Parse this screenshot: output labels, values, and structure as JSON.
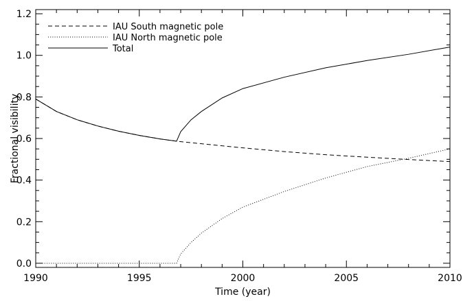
{
  "chart_data": {
    "type": "line",
    "xlabel": "Time (year)",
    "ylabel": "Fractional visibility",
    "xlim": [
      1990,
      2010
    ],
    "ylim": [
      -0.02,
      1.22
    ],
    "x_ticks": [
      1990,
      1995,
      2000,
      2005,
      2010
    ],
    "y_ticks": [
      0.0,
      0.2,
      0.4,
      0.6,
      0.8,
      1.0,
      1.2
    ],
    "x_tick_labels": [
      "1990",
      "1995",
      "2000",
      "2005",
      "2010"
    ],
    "y_tick_labels": [
      "0.0",
      "0.2",
      "0.4",
      "0.6",
      "0.8",
      "1.0",
      "1.2"
    ],
    "legend_position": "top-left",
    "grid": false,
    "series": [
      {
        "name": "IAU South magnetic pole",
        "style": "dashed",
        "color": "#000000",
        "x": [
          1990,
          1991,
          1992,
          1993,
          1994,
          1995,
          1996,
          1996.8,
          1998,
          2000,
          2002,
          2004,
          2006,
          2008,
          2010
        ],
        "y": [
          0.79,
          0.73,
          0.69,
          0.66,
          0.635,
          0.615,
          0.598,
          0.587,
          0.575,
          0.555,
          0.537,
          0.522,
          0.51,
          0.499,
          0.489
        ]
      },
      {
        "name": "IAU North magnetic pole",
        "style": "dotted",
        "color": "#000000",
        "x": [
          1990,
          1996.8,
          1997,
          1997.5,
          1998,
          1999,
          2000,
          2002,
          2004,
          2006,
          2008,
          2010
        ],
        "y": [
          0.0,
          0.0,
          0.045,
          0.1,
          0.145,
          0.215,
          0.27,
          0.345,
          0.41,
          0.465,
          0.505,
          0.55
        ]
      },
      {
        "name": "Total",
        "style": "solid",
        "color": "#000000",
        "x": [
          1990,
          1991,
          1992,
          1993,
          1994,
          1995,
          1996,
          1996.8,
          1997,
          1997.5,
          1998,
          1999,
          2000,
          2002,
          2004,
          2006,
          2008,
          2010
        ],
        "y": [
          0.79,
          0.73,
          0.69,
          0.66,
          0.635,
          0.615,
          0.598,
          0.587,
          0.633,
          0.69,
          0.73,
          0.795,
          0.84,
          0.895,
          0.94,
          0.975,
          1.005,
          1.04
        ]
      }
    ]
  }
}
